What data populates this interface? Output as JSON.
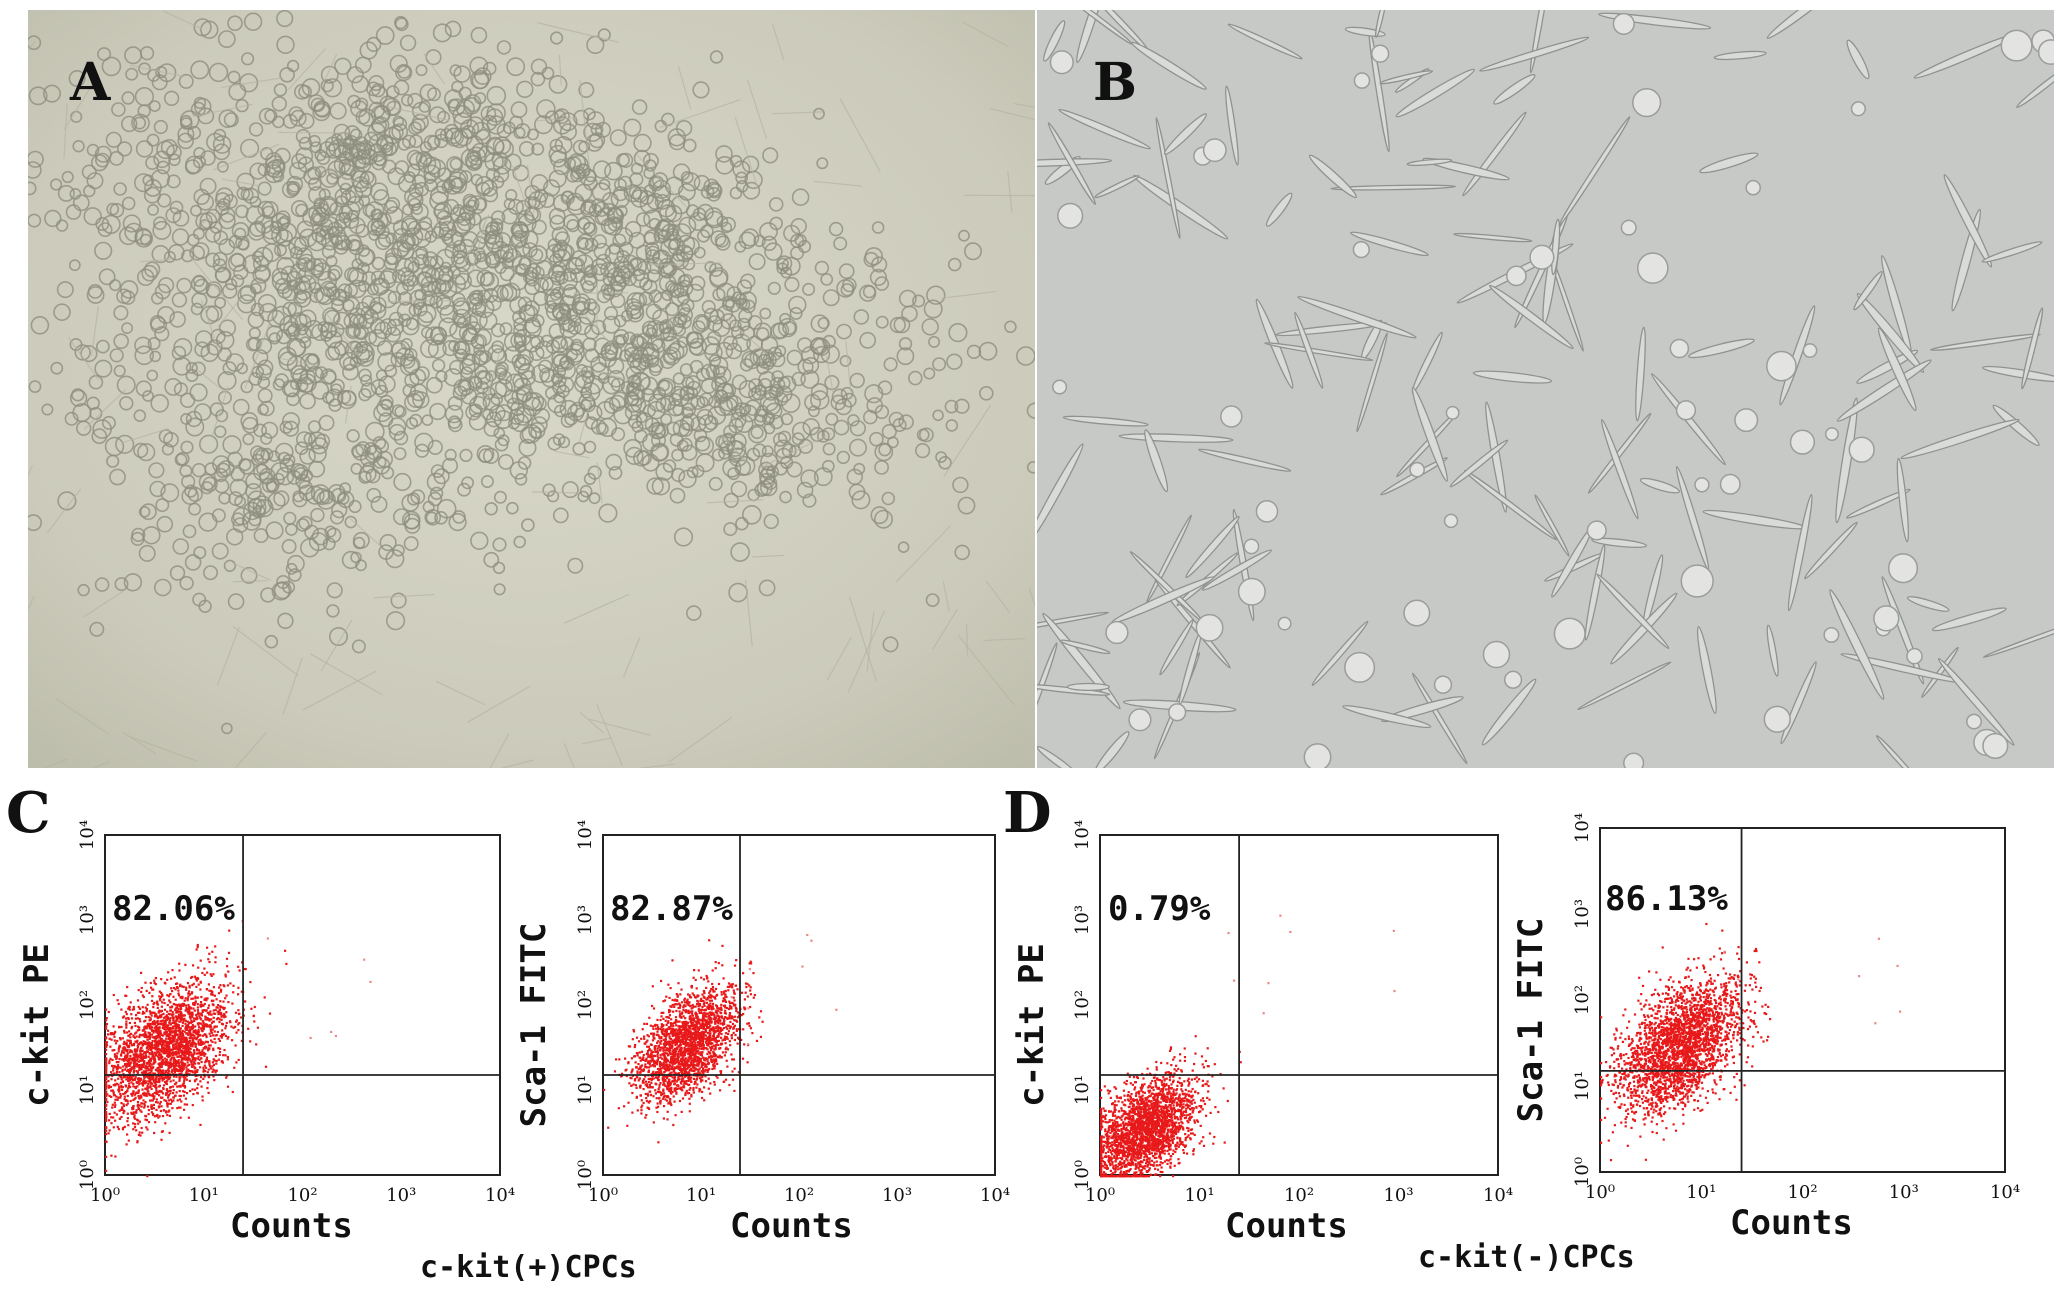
{
  "figure": {
    "panels": {
      "A": {
        "label": "A",
        "type": "micrograph"
      },
      "B": {
        "label": "B",
        "type": "micrograph"
      },
      "C": {
        "label": "C",
        "caption": "c-kit(+)CPCs"
      },
      "D": {
        "label": "D",
        "caption": "c-kit(-)CPCs"
      }
    }
  },
  "chart_data": [
    {
      "type": "scatter",
      "panel": "C",
      "ylabel": "c-kit PE",
      "xlabel": "Counts",
      "x_scale": "log",
      "y_scale": "log",
      "xlim": [
        1,
        10000
      ],
      "ylim": [
        1,
        10000
      ],
      "x_ticks": [
        "10^0",
        "10^1",
        "10^2",
        "10^3",
        "10^4"
      ],
      "y_ticks": [
        "10^0",
        "10^1",
        "10^2",
        "10^3",
        "10^4"
      ],
      "gate": {
        "x": 25,
        "y": 15
      },
      "percentage": "82.06%",
      "color": "#e8191a",
      "cluster": {
        "center": [
          4,
          30
        ],
        "spread": 0.32,
        "points": 2600
      }
    },
    {
      "type": "scatter",
      "panel": "C",
      "ylabel": "Sca-1 FITC",
      "xlabel": "Counts",
      "x_scale": "log",
      "y_scale": "log",
      "xlim": [
        1,
        10000
      ],
      "ylim": [
        1,
        10000
      ],
      "x_ticks": [
        "10^0",
        "10^1",
        "10^2",
        "10^3",
        "10^4"
      ],
      "y_ticks": [
        "10^0",
        "10^1",
        "10^2",
        "10^3",
        "10^4"
      ],
      "gate": {
        "x": 25,
        "y": 15
      },
      "percentage": "82.87%",
      "color": "#e8191a",
      "cluster": {
        "center": [
          7,
          35
        ],
        "spread": 0.26,
        "points": 2200
      }
    },
    {
      "type": "scatter",
      "panel": "D",
      "ylabel": "c-kit PE",
      "xlabel": "Counts",
      "x_scale": "log",
      "y_scale": "log",
      "xlim": [
        1,
        10000
      ],
      "ylim": [
        1,
        10000
      ],
      "x_ticks": [
        "10^0",
        "10^1",
        "10^2",
        "10^3",
        "10^4"
      ],
      "y_ticks": [
        "10^0",
        "10^1",
        "10^2",
        "10^3",
        "10^4"
      ],
      "gate": {
        "x": 25,
        "y": 15
      },
      "percentage": "0.79%",
      "color": "#e8191a",
      "cluster": {
        "center": [
          2.8,
          3.5
        ],
        "spread": 0.25,
        "points": 2400
      }
    },
    {
      "type": "scatter",
      "panel": "D",
      "ylabel": "Sca-1 FITC",
      "xlabel": "Counts",
      "x_scale": "log",
      "y_scale": "log",
      "xlim": [
        1,
        10000
      ],
      "ylim": [
        1,
        10000
      ],
      "x_ticks": [
        "10^0",
        "10^1",
        "10^2",
        "10^3",
        "10^4"
      ],
      "y_ticks": [
        "10^0",
        "10^1",
        "10^2",
        "10^3",
        "10^4"
      ],
      "gate": {
        "x": 25,
        "y": 15
      },
      "percentage": "86.13%",
      "color": "#e8191a",
      "cluster": {
        "center": [
          6,
          30
        ],
        "spread": 0.3,
        "points": 2600
      }
    }
  ]
}
